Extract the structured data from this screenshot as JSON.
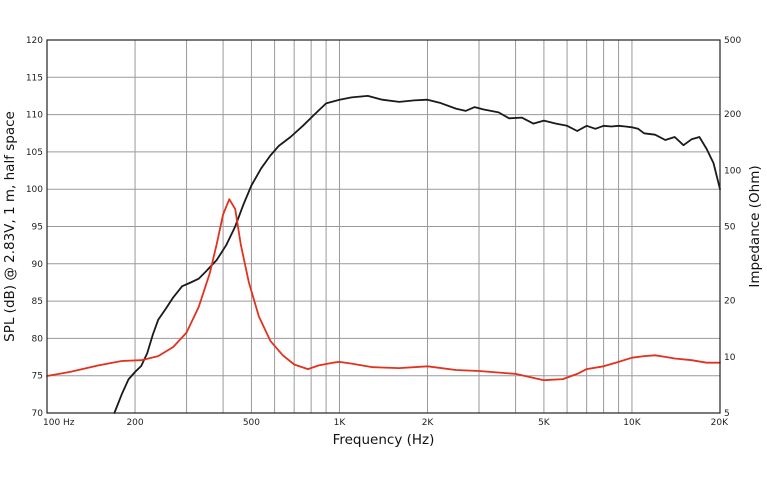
{
  "chart_data": {
    "type": "line",
    "title": "",
    "xlabel": "Frequency (Hz)",
    "ylabel": "SPL (dB) @ 2.83V, 1 m, half space",
    "y2label": "Impedance (Ohm)",
    "x_scale": "log",
    "xlim": [
      100,
      20000
    ],
    "ylim": [
      70,
      120
    ],
    "y2lim": [
      5,
      500
    ],
    "y2_scale": "log",
    "grid": true,
    "x_ticks": [
      {
        "value": 100,
        "label": "100 Hz"
      },
      {
        "value": 200,
        "label": "200"
      },
      {
        "value": 500,
        "label": "500"
      },
      {
        "value": 1000,
        "label": "1K"
      },
      {
        "value": 2000,
        "label": "2K"
      },
      {
        "value": 5000,
        "label": "5K"
      },
      {
        "value": 10000,
        "label": "10K"
      },
      {
        "value": 20000,
        "label": "20K"
      }
    ],
    "x_grid": [
      100,
      200,
      300,
      400,
      500,
      600,
      700,
      800,
      900,
      1000,
      2000,
      3000,
      4000,
      5000,
      6000,
      7000,
      8000,
      9000,
      10000,
      20000
    ],
    "y_ticks": [
      {
        "value": 120,
        "label": "120"
      },
      {
        "value": 115,
        "label": "115"
      },
      {
        "value": 110,
        "label": "110"
      },
      {
        "value": 105,
        "label": "105"
      },
      {
        "value": 100,
        "label": "100"
      },
      {
        "value": 95,
        "label": "95"
      },
      {
        "value": 90,
        "label": "90"
      },
      {
        "value": 85,
        "label": "85"
      },
      {
        "value": 80,
        "label": "80"
      },
      {
        "value": 75,
        "label": "75"
      },
      {
        "value": 70,
        "label": "70"
      }
    ],
    "y2_ticks": [
      {
        "value": 500,
        "label": "500"
      },
      {
        "value": 200,
        "label": "200"
      },
      {
        "value": 100,
        "label": "100"
      },
      {
        "value": 50,
        "label": "50"
      },
      {
        "value": 20,
        "label": "20"
      },
      {
        "value": 10,
        "label": "10"
      },
      {
        "value": 5,
        "label": "5"
      }
    ],
    "series": [
      {
        "axis": "left",
        "color": "#1a1a1a",
        "points": [
          [
            170,
            70.0
          ],
          [
            180,
            72.5
          ],
          [
            190,
            74.5
          ],
          [
            200,
            75.5
          ],
          [
            210,
            76.3
          ],
          [
            220,
            78.0
          ],
          [
            230,
            80.5
          ],
          [
            240,
            82.5
          ],
          [
            255,
            84.0
          ],
          [
            270,
            85.5
          ],
          [
            290,
            87.0
          ],
          [
            310,
            87.5
          ],
          [
            330,
            88.0
          ],
          [
            350,
            89.0
          ],
          [
            380,
            90.5
          ],
          [
            410,
            92.5
          ],
          [
            440,
            95.0
          ],
          [
            470,
            98.0
          ],
          [
            500,
            100.5
          ],
          [
            540,
            102.8
          ],
          [
            580,
            104.5
          ],
          [
            620,
            105.8
          ],
          [
            680,
            107.0
          ],
          [
            750,
            108.5
          ],
          [
            820,
            110.0
          ],
          [
            900,
            111.5
          ],
          [
            1000,
            112.0
          ],
          [
            1100,
            112.3
          ],
          [
            1250,
            112.5
          ],
          [
            1400,
            112.0
          ],
          [
            1600,
            111.7
          ],
          [
            1800,
            111.9
          ],
          [
            2000,
            112.0
          ],
          [
            2200,
            111.6
          ],
          [
            2500,
            110.8
          ],
          [
            2700,
            110.5
          ],
          [
            2900,
            111.0
          ],
          [
            3100,
            110.7
          ],
          [
            3500,
            110.3
          ],
          [
            3800,
            109.5
          ],
          [
            4200,
            109.6
          ],
          [
            4600,
            108.8
          ],
          [
            5000,
            109.2
          ],
          [
            5500,
            108.8
          ],
          [
            6000,
            108.5
          ],
          [
            6500,
            107.8
          ],
          [
            7000,
            108.5
          ],
          [
            7500,
            108.1
          ],
          [
            8000,
            108.5
          ],
          [
            8500,
            108.4
          ],
          [
            9000,
            108.5
          ],
          [
            9500,
            108.4
          ],
          [
            10000,
            108.3
          ],
          [
            10500,
            108.1
          ],
          [
            11000,
            107.5
          ],
          [
            12000,
            107.3
          ],
          [
            13000,
            106.6
          ],
          [
            14000,
            107.0
          ],
          [
            15000,
            105.9
          ],
          [
            16000,
            106.7
          ],
          [
            17000,
            107.0
          ],
          [
            18000,
            105.4
          ],
          [
            19000,
            103.5
          ],
          [
            20000,
            100.0
          ]
        ]
      },
      {
        "axis": "right",
        "color": "#e0321e",
        "points": [
          [
            100,
            7.9
          ],
          [
            120,
            8.3
          ],
          [
            150,
            9.0
          ],
          [
            180,
            9.5
          ],
          [
            210,
            9.6
          ],
          [
            240,
            10.1
          ],
          [
            270,
            11.3
          ],
          [
            300,
            13.5
          ],
          [
            330,
            18.5
          ],
          [
            360,
            28.0
          ],
          [
            380,
            40.0
          ],
          [
            400,
            58.0
          ],
          [
            420,
            70.0
          ],
          [
            440,
            62.0
          ],
          [
            460,
            40.0
          ],
          [
            490,
            25.0
          ],
          [
            530,
            16.5
          ],
          [
            580,
            12.2
          ],
          [
            640,
            10.2
          ],
          [
            700,
            9.1
          ],
          [
            780,
            8.6
          ],
          [
            850,
            9.0
          ],
          [
            950,
            9.3
          ],
          [
            1000,
            9.4
          ],
          [
            1100,
            9.2
          ],
          [
            1300,
            8.8
          ],
          [
            1600,
            8.7
          ],
          [
            2000,
            8.9
          ],
          [
            2500,
            8.5
          ],
          [
            3000,
            8.4
          ],
          [
            4000,
            8.1
          ],
          [
            5000,
            7.5
          ],
          [
            5800,
            7.6
          ],
          [
            6500,
            8.1
          ],
          [
            7000,
            8.6
          ],
          [
            8000,
            8.9
          ],
          [
            9000,
            9.4
          ],
          [
            10000,
            9.9
          ],
          [
            11000,
            10.1
          ],
          [
            12000,
            10.2
          ],
          [
            13000,
            10.0
          ],
          [
            14000,
            9.8
          ],
          [
            16000,
            9.6
          ],
          [
            18000,
            9.3
          ],
          [
            20000,
            9.3
          ]
        ]
      }
    ]
  }
}
